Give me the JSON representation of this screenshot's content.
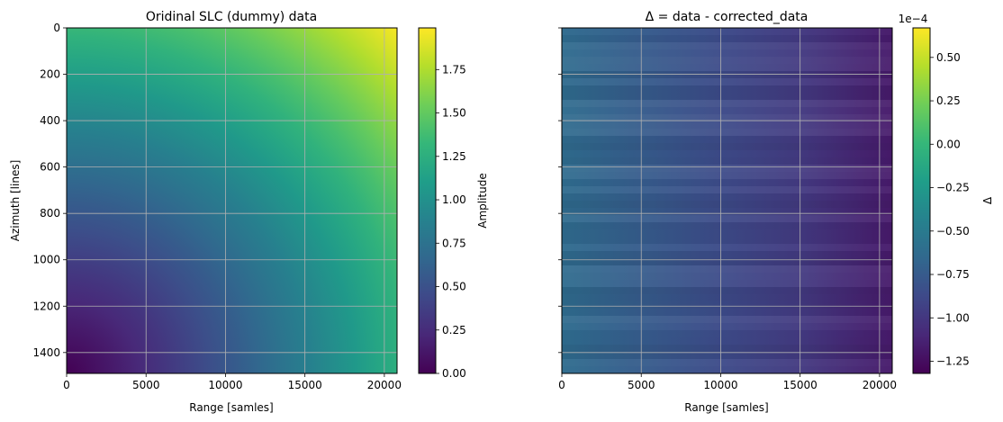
{
  "colormap": {
    "name": "viridis",
    "stops": [
      "#440154",
      "#482878",
      "#3e4989",
      "#31688e",
      "#26828e",
      "#1f9e89",
      "#35b779",
      "#6ece58",
      "#b5de2b",
      "#fde725"
    ]
  },
  "grid_color": "#b0b0b0",
  "chart_data": [
    {
      "type": "heatmap",
      "title": "Oridinal SLC (dummy) data",
      "xlabel": "Range [samles]",
      "ylabel": "Azimuth [lines]",
      "xlim": [
        0,
        20800
      ],
      "ylim": [
        1490,
        0
      ],
      "grid": true,
      "xticks": [
        0,
        5000,
        10000,
        15000,
        20000
      ],
      "yticks": [
        0,
        200,
        400,
        600,
        800,
        1000,
        1200,
        1400
      ],
      "field": "amplitude ≈ ((range/20800)^2 + ((1490-azimuth)/1490)^2) ramp, 0 at bottom-left to ~1.99 at top-right",
      "colorbar": {
        "label": "Amplitude",
        "range": [
          0.0,
          1.99
        ],
        "ticks": [
          0.0,
          0.25,
          0.5,
          0.75,
          1.0,
          1.25,
          1.5,
          1.75
        ],
        "tick_labels": [
          "0.00",
          "0.25",
          "0.50",
          "0.75",
          "1.00",
          "1.25",
          "1.50",
          "1.75"
        ],
        "offset_text": ""
      }
    },
    {
      "type": "heatmap",
      "title": "Δ = data - corrected_data",
      "xlabel": "Range [samles]",
      "ylabel": "",
      "xlim": [
        0,
        20800
      ],
      "ylim": [
        1490,
        0
      ],
      "grid": true,
      "xticks": [
        0,
        5000,
        10000,
        15000,
        20000
      ],
      "yticks": [
        0,
        200,
        400,
        600,
        800,
        1000,
        1200,
        1400
      ],
      "field": "Δ varies with range, ≈ -0.62 at range 0 to ≈ -1.18 at range 20800 (×1e-4), faint azimuth striping",
      "profile_range": [
        0,
        5000,
        10000,
        15000,
        20800
      ],
      "profile_values": [
        -0.62,
        -0.74,
        -0.86,
        -0.98,
        -1.18
      ],
      "colorbar": {
        "label": "Δ",
        "range": [
          -1.32,
          0.67
        ],
        "ticks": [
          -1.25,
          -1.0,
          -0.75,
          -0.5,
          -0.25,
          0.0,
          0.25,
          0.5
        ],
        "tick_labels": [
          "−1.25",
          "−1.00",
          "−0.75",
          "−0.50",
          "−0.25",
          "0.00",
          "0.25",
          "0.50"
        ],
        "offset_text": "1e−4"
      }
    }
  ]
}
